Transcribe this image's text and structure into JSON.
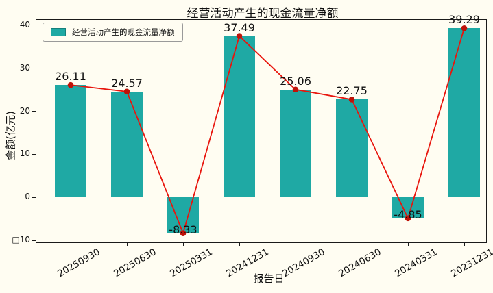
{
  "chart_data": {
    "type": "bar",
    "line_overlay": true,
    "title": "经营活动产生的现金流量净额",
    "xlabel": "报告日",
    "ylabel": "金额(亿元)",
    "legend_label": "经营活动产生的现金流量净额",
    "legend_position": "upper left",
    "categories": [
      "20250930",
      "20250630",
      "20250331",
      "20241231",
      "20240930",
      "20240630",
      "20240331",
      "20231231"
    ],
    "values": [
      26.11,
      24.57,
      -8.33,
      37.49,
      25.06,
      22.75,
      -4.85,
      39.29
    ],
    "value_labels": [
      "26.11",
      "24.57",
      "-8.33",
      "37.49",
      "25.06",
      "22.75",
      "-4.85",
      "39.29"
    ],
    "ylim": [
      -10.6,
      41.4
    ],
    "yticks": [
      40,
      30,
      20,
      10,
      0,
      -10
    ],
    "ytick_labels": [
      "40",
      "30",
      "20",
      "10",
      "0",
      "□10"
    ],
    "grid": false,
    "colors": {
      "background": "#fffdf2",
      "bar": "#1fa9a4",
      "line": "#e8150d",
      "marker": "#bf1208",
      "text": "#111111"
    }
  }
}
